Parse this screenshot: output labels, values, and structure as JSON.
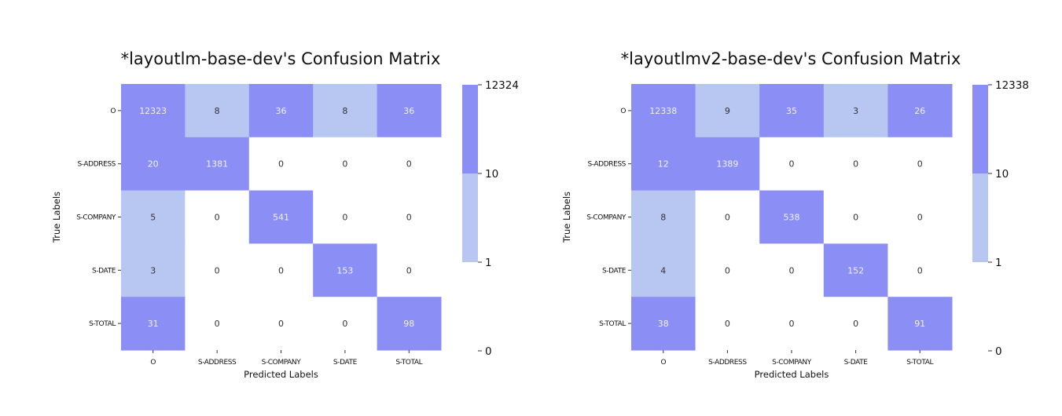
{
  "chart_data": [
    {
      "type": "heatmap",
      "title": "*layoutlm-base-dev's Confusion Matrix",
      "xlabel": "Predicted Labels",
      "ylabel": "True Labels",
      "x_categories": [
        "O",
        "S-ADDRESS",
        "S-COMPANY",
        "S-DATE",
        "S-TOTAL"
      ],
      "y_categories": [
        "O",
        "S-ADDRESS",
        "S-COMPANY",
        "S-DATE",
        "S-TOTAL"
      ],
      "values": [
        [
          12323,
          8,
          36,
          8,
          36
        ],
        [
          20,
          1381,
          0,
          0,
          0
        ],
        [
          5,
          0,
          541,
          0,
          0
        ],
        [
          3,
          0,
          0,
          153,
          0
        ],
        [
          31,
          0,
          0,
          0,
          98
        ]
      ],
      "colorbar": {
        "ticks": [
          "12324",
          "10",
          "1",
          "0"
        ],
        "bins": [
          {
            "min": 0,
            "max": 1,
            "color": "#ffffff"
          },
          {
            "min": 1,
            "max": 10,
            "color": "#b8c6f2"
          },
          {
            "min": 10,
            "max": 12324,
            "color": "#8a8ef5"
          }
        ]
      }
    },
    {
      "type": "heatmap",
      "title": "*layoutlmv2-base-dev's Confusion Matrix",
      "xlabel": "Predicted Labels",
      "ylabel": "True Labels",
      "x_categories": [
        "O",
        "S-ADDRESS",
        "S-COMPANY",
        "S-DATE",
        "S-TOTAL"
      ],
      "y_categories": [
        "O",
        "S-ADDRESS",
        "S-COMPANY",
        "S-DATE",
        "S-TOTAL"
      ],
      "values": [
        [
          12338,
          9,
          35,
          3,
          26
        ],
        [
          12,
          1389,
          0,
          0,
          0
        ],
        [
          8,
          0,
          538,
          0,
          0
        ],
        [
          4,
          0,
          0,
          152,
          0
        ],
        [
          38,
          0,
          0,
          0,
          91
        ]
      ],
      "colorbar": {
        "ticks": [
          "12338",
          "10",
          "1",
          "0"
        ],
        "bins": [
          {
            "min": 0,
            "max": 1,
            "color": "#ffffff"
          },
          {
            "min": 1,
            "max": 10,
            "color": "#b8c6f2"
          },
          {
            "min": 10,
            "max": 12338,
            "color": "#8a8ef5"
          }
        ]
      }
    }
  ]
}
